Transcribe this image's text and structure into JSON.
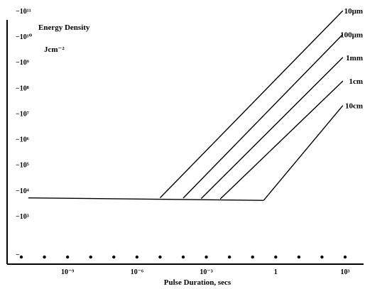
{
  "chart_data": {
    "type": "line",
    "title": "Energy Density",
    "ylabel": "Jcm⁻²",
    "xlabel": "Pulse Duration, secs",
    "x_scale": "log",
    "y_scale": "log",
    "xlim": [
      1e-11,
      1000.0
    ],
    "ylim": [
      100.0,
      100000000000.0
    ],
    "x_ticks": [
      {
        "value": 1e-09,
        "label": "10⁻⁹"
      },
      {
        "value": 1e-06,
        "label": "10⁻⁶"
      },
      {
        "value": 0.001,
        "label": "10⁻³"
      },
      {
        "value": 1,
        "label": "1"
      },
      {
        "value": 1000.0,
        "label": "10³"
      }
    ],
    "y_ticks": [
      {
        "value": 1000.0,
        "label": "−10³"
      },
      {
        "value": 10000.0,
        "label": "−10⁴"
      },
      {
        "value": 100000.0,
        "label": "−10⁵"
      },
      {
        "value": 1000000.0,
        "label": "−10⁶"
      },
      {
        "value": 10000000.0,
        "label": "−10⁷"
      },
      {
        "value": 100000000.0,
        "label": "−10⁸"
      },
      {
        "value": 1000000000.0,
        "label": "−10⁹"
      },
      {
        "value": 10000000000.0,
        "label": "−10¹⁰"
      },
      {
        "value": 100000000000.0,
        "label": "−10¹¹"
      }
    ],
    "baseline_marker_label": "−",
    "x_dots": [
      1e-11,
      1e-10,
      1e-09,
      1e-08,
      1e-07,
      1e-06,
      1e-05,
      0.0001,
      0.001,
      0.01,
      0.1,
      1,
      10,
      100,
      1000
    ],
    "baseline": {
      "x": [
        2e-11,
        0.3
      ],
      "y": [
        5000,
        4000
      ]
    },
    "series": [
      {
        "name": "10μm",
        "x": [
          1e-05,
          800
        ],
        "y": [
          5000,
          100000000000.0
        ]
      },
      {
        "name": "100μm",
        "x": [
          0.0001,
          800
        ],
        "y": [
          4900,
          12000000000.0
        ]
      },
      {
        "name": "1mm",
        "x": [
          0.0006,
          800
        ],
        "y": [
          4700,
          1500000000.0
        ]
      },
      {
        "name": "1cm",
        "x": [
          0.004,
          800
        ],
        "y": [
          4500,
          180000000.0
        ]
      },
      {
        "name": "10cm",
        "x": [
          0.3,
          800
        ],
        "y": [
          4000,
          20000000.0
        ]
      }
    ]
  }
}
